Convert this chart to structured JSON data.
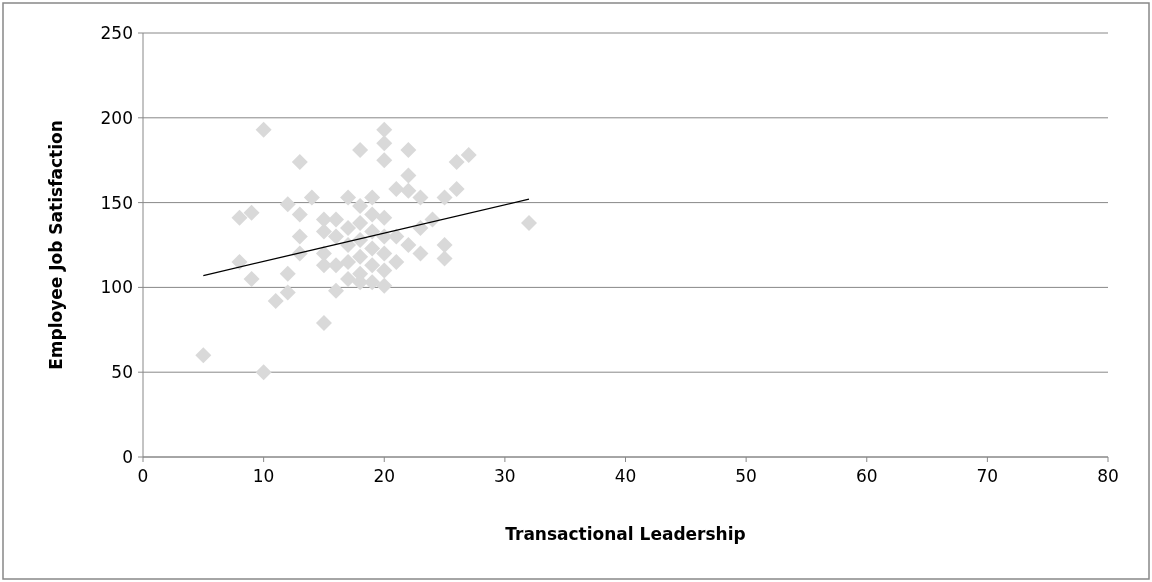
{
  "chart_data": {
    "type": "scatter",
    "xlabel": "Transactional Leadership",
    "ylabel": "Employee Job Satisfaction",
    "xlim": [
      0,
      80
    ],
    "xticks": [
      0,
      10,
      20,
      30,
      40,
      50,
      60,
      70,
      80
    ],
    "ylim": [
      0,
      250
    ],
    "yticks": [
      0,
      50,
      100,
      150,
      200,
      250
    ],
    "grid": "y",
    "marker": "diamond",
    "series": [
      {
        "color": "#d9d9d9",
        "x": [
          5,
          10,
          10,
          8,
          8,
          9,
          9,
          11,
          12,
          12,
          12,
          13,
          13,
          13,
          13,
          14,
          15,
          15,
          15,
          15,
          15,
          16,
          16,
          16,
          16,
          17,
          17,
          17,
          17,
          17,
          18,
          18,
          18,
          18,
          18,
          18,
          18,
          19,
          19,
          19,
          19,
          19,
          19,
          20,
          20,
          20,
          20,
          20,
          20,
          20,
          20,
          21,
          21,
          21,
          22,
          22,
          22,
          22,
          23,
          23,
          23,
          24,
          25,
          25,
          25,
          26,
          26,
          27,
          32
        ],
        "values": [
          60,
          193,
          50,
          141,
          115,
          144,
          105,
          92,
          149,
          108,
          97,
          174,
          143,
          130,
          120,
          153,
          140,
          133,
          120,
          113,
          79,
          140,
          130,
          113,
          98,
          153,
          135,
          125,
          115,
          105,
          181,
          148,
          138,
          128,
          118,
          108,
          103,
          153,
          143,
          133,
          123,
          113,
          103,
          193,
          185,
          175,
          141,
          130,
          120,
          110,
          101,
          158,
          130,
          115,
          181,
          166,
          157,
          125,
          153,
          135,
          120,
          140,
          153,
          125,
          117,
          174,
          158,
          178,
          138
        ]
      },
      {
        "type": "line",
        "color": "#000000",
        "marker": "none",
        "x": [
          5,
          32
        ],
        "values": [
          107,
          152
        ]
      }
    ]
  }
}
